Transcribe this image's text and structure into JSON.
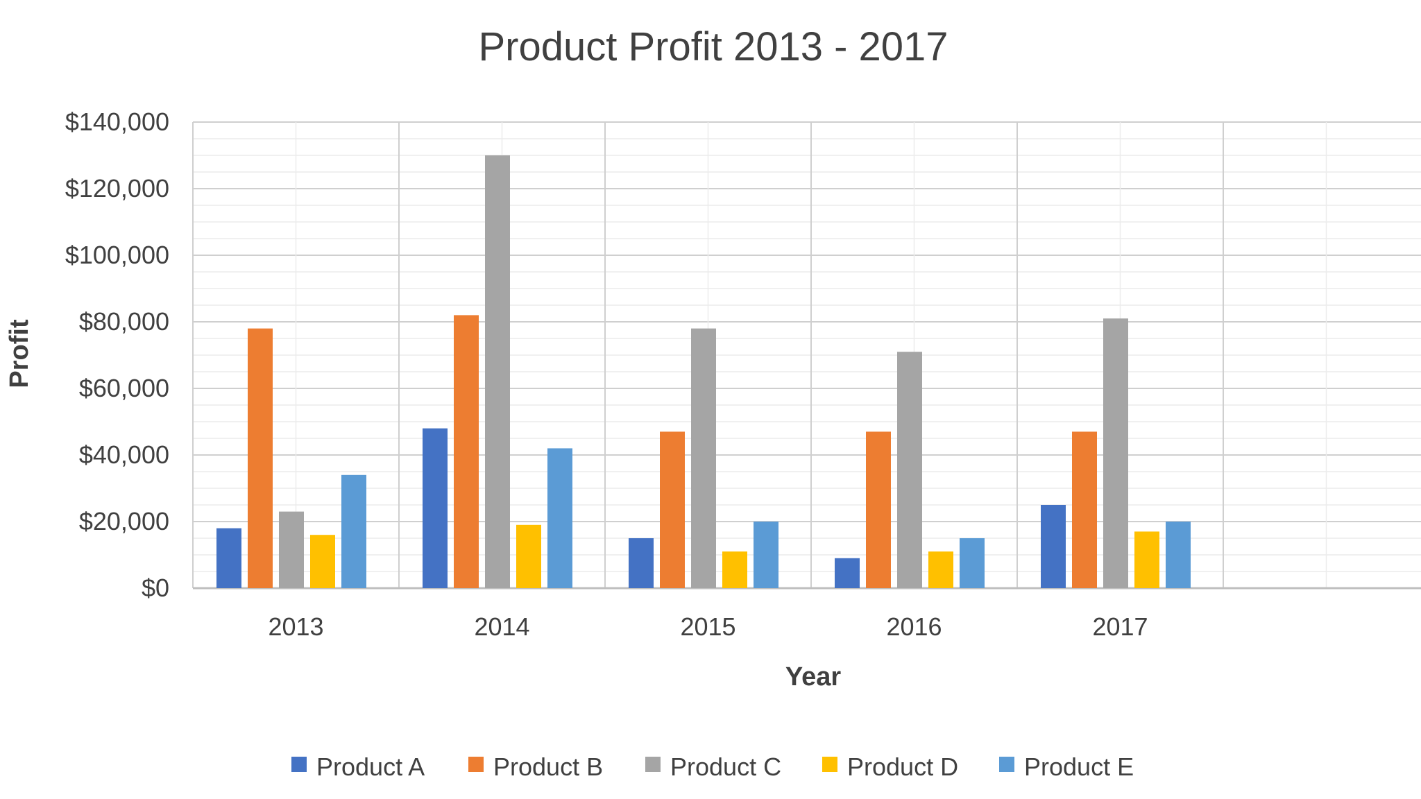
{
  "chart_data": {
    "type": "bar",
    "title": "Product Profit 2013 - 2017",
    "xlabel": "Year",
    "ylabel": "Profit",
    "categories": [
      "2013",
      "2014",
      "2015",
      "2016",
      "2017"
    ],
    "ylim": [
      0,
      140000
    ],
    "y_ticks": [
      {
        "value": 0,
        "label": "$0"
      },
      {
        "value": 20000,
        "label": "$20,000"
      },
      {
        "value": 40000,
        "label": "$40,000"
      },
      {
        "value": 60000,
        "label": "$60,000"
      },
      {
        "value": 80000,
        "label": "$80,000"
      },
      {
        "value": 100000,
        "label": "$100,000"
      },
      {
        "value": 120000,
        "label": "$120,000"
      },
      {
        "value": 140000,
        "label": "$140,000"
      }
    ],
    "grid": true,
    "legend_position": "bottom",
    "series": [
      {
        "name": "Product A",
        "color": "#4472C4",
        "values": [
          18000,
          48000,
          15000,
          9000,
          25000
        ]
      },
      {
        "name": "Product B",
        "color": "#ED7D31",
        "values": [
          78000,
          82000,
          47000,
          47000,
          47000
        ]
      },
      {
        "name": "Product C",
        "color": "#A5A5A5",
        "values": [
          23000,
          130000,
          78000,
          71000,
          81000
        ]
      },
      {
        "name": "Product D",
        "color": "#FFC000",
        "values": [
          16000,
          19000,
          11000,
          11000,
          17000
        ]
      },
      {
        "name": "Product E",
        "color": "#5B9BD5",
        "values": [
          34000,
          42000,
          20000,
          15000,
          20000
        ]
      }
    ]
  }
}
